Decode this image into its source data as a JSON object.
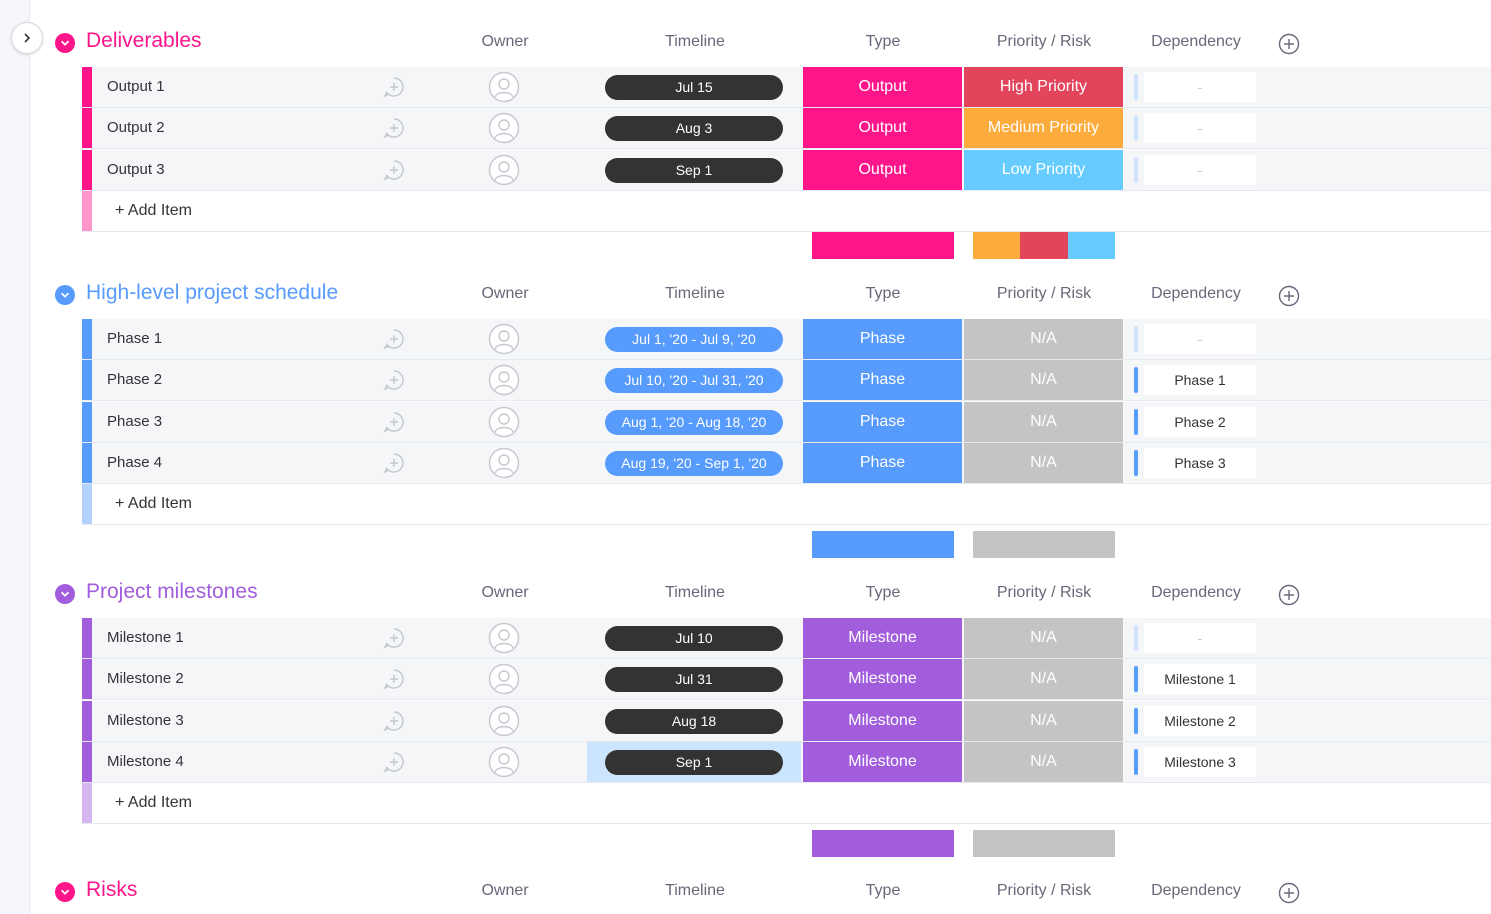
{
  "columns": {
    "owner": "Owner",
    "timeline": "Timeline",
    "type": "Type",
    "priority": "Priority / Risk",
    "dependency": "Dependency"
  },
  "add_item_label": "+ Add Item",
  "colors": {
    "pink": "#ff158a",
    "blue": "#579bfc",
    "purple": "#a25ddc",
    "dark_pill": "#333333",
    "red": "#e2445c",
    "orange": "#fdab3d",
    "light_blue": "#66ccff",
    "grey": "#c4c4c4"
  },
  "groups": [
    {
      "title": "Deliverables",
      "color": "#ff158a",
      "items": [
        {
          "name": "Output 1",
          "timeline": "Jul 15",
          "type": "Output",
          "priority": "High Priority",
          "priority_color": "#e2445c",
          "dependency": "-"
        },
        {
          "name": "Output 2",
          "timeline": "Aug 3",
          "type": "Output",
          "priority": "Medium Priority",
          "priority_color": "#fdab3d",
          "dependency": "-"
        },
        {
          "name": "Output 3",
          "timeline": "Sep 1",
          "type": "Output",
          "priority": "Low Priority",
          "priority_color": "#66ccff",
          "dependency": "-"
        }
      ]
    },
    {
      "title": "High-level project schedule",
      "color": "#579bfc",
      "items": [
        {
          "name": "Phase 1",
          "timeline": "Jul 1, '20 - Jul 9, '20",
          "type": "Phase",
          "priority": "N/A",
          "priority_color": "#c4c4c4",
          "dependency": "-"
        },
        {
          "name": "Phase 2",
          "timeline": "Jul 10, '20 - Jul 31, '20",
          "type": "Phase",
          "priority": "N/A",
          "priority_color": "#c4c4c4",
          "dependency": "Phase 1"
        },
        {
          "name": "Phase 3",
          "timeline": "Aug 1, '20 - Aug 18, '20",
          "type": "Phase",
          "priority": "N/A",
          "priority_color": "#c4c4c4",
          "dependency": "Phase 2"
        },
        {
          "name": "Phase 4",
          "timeline": "Aug 19, '20 - Sep 1, '20",
          "type": "Phase",
          "priority": "N/A",
          "priority_color": "#c4c4c4",
          "dependency": "Phase 3"
        }
      ]
    },
    {
      "title": "Project milestones",
      "color": "#a25ddc",
      "items": [
        {
          "name": "Milestone 1",
          "timeline": "Jul 10",
          "type": "Milestone",
          "priority": "N/A",
          "priority_color": "#c4c4c4",
          "dependency": "-"
        },
        {
          "name": "Milestone 2",
          "timeline": "Jul 31",
          "type": "Milestone",
          "priority": "N/A",
          "priority_color": "#c4c4c4",
          "dependency": "Milestone 1"
        },
        {
          "name": "Milestone 3",
          "timeline": "Aug 18",
          "type": "Milestone",
          "priority": "N/A",
          "priority_color": "#c4c4c4",
          "dependency": "Milestone 2"
        },
        {
          "name": "Milestone 4",
          "timeline": "Sep 1",
          "type": "Milestone",
          "priority": "N/A",
          "priority_color": "#c4c4c4",
          "dependency": "Milestone 3"
        }
      ]
    },
    {
      "title": "Risks",
      "color": "#ff158a",
      "items": []
    }
  ]
}
